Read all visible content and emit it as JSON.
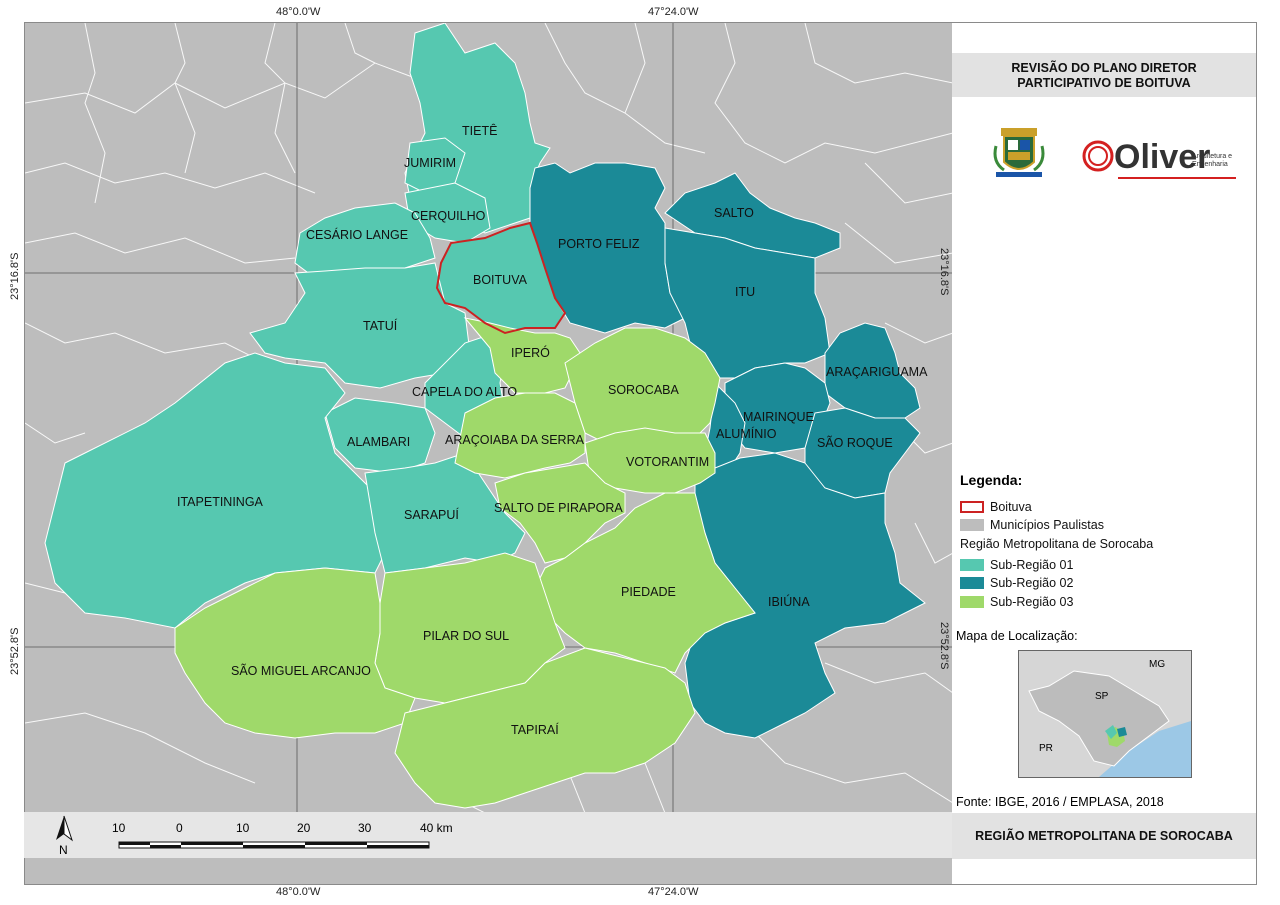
{
  "map": {
    "title": "REVISÃO DO PLANO DIRETOR PARTICIPATIVO DE BOITUVA",
    "subtitle": "REGIÃO METROPOLITANA DE SOROCABA",
    "source": "Fonte: IBGE, 2016 / EMPLASA, 2018",
    "north_label": "N",
    "scale_labels": [
      "10",
      "0",
      "10",
      "20",
      "30",
      "40 km"
    ],
    "coords": {
      "lon_left": "48°0.0'W",
      "lon_right": "47°24.0'W",
      "lat_upper": "23°16.8'S",
      "lat_lower": "23°52.8'S"
    },
    "colors": {
      "sub01": "#56c8b0",
      "sub02": "#1b8a97",
      "sub03": "#9fd96a",
      "background": "#bdbdbd",
      "boituva_outline": "#cc2222"
    },
    "municipalities": [
      {
        "name": "TIETÊ",
        "region": "sub01"
      },
      {
        "name": "JUMIRIM",
        "region": "sub01"
      },
      {
        "name": "CERQUILHO",
        "region": "sub01"
      },
      {
        "name": "CESÁRIO LANGE",
        "region": "sub01"
      },
      {
        "name": "BOITUVA",
        "region": "sub01"
      },
      {
        "name": "TATUÍ",
        "region": "sub01"
      },
      {
        "name": "CAPELA DO ALTO",
        "region": "sub01"
      },
      {
        "name": "ALAMBARI",
        "region": "sub01"
      },
      {
        "name": "ITAPETININGA",
        "region": "sub01"
      },
      {
        "name": "SARAPUÍ",
        "region": "sub01"
      },
      {
        "name": "PORTO FELIZ",
        "region": "sub02"
      },
      {
        "name": "SALTO",
        "region": "sub02"
      },
      {
        "name": "ITU",
        "region": "sub02"
      },
      {
        "name": "ARAÇARIGUAMA",
        "region": "sub02"
      },
      {
        "name": "MAIRINQUE",
        "region": "sub02"
      },
      {
        "name": "ALUMÍNIO",
        "region": "sub02"
      },
      {
        "name": "SÃO ROQUE",
        "region": "sub02"
      },
      {
        "name": "IBIÚNA",
        "region": "sub02"
      },
      {
        "name": "IPERÓ",
        "region": "sub03"
      },
      {
        "name": "SOROCABA",
        "region": "sub03"
      },
      {
        "name": "ARAÇOIABA DA SERRA",
        "region": "sub03"
      },
      {
        "name": "VOTORANTIM",
        "region": "sub03"
      },
      {
        "name": "SALTO DE PIRAPORA",
        "region": "sub03"
      },
      {
        "name": "PIEDADE",
        "region": "sub03"
      },
      {
        "name": "PILAR DO SUL",
        "region": "sub03"
      },
      {
        "name": "SÃO MIGUEL ARCANJO",
        "region": "sub03"
      },
      {
        "name": "TAPIRAÍ",
        "region": "sub03"
      }
    ],
    "legend": {
      "title": "Legenda:",
      "items": [
        {
          "label": "Boituva"
        },
        {
          "label": "Municípios Paulistas"
        },
        {
          "label": "Região Metropolitana de Sorocaba"
        },
        {
          "label": "Sub-Região 01"
        },
        {
          "label": "Sub-Região 02"
        },
        {
          "label": "Sub-Região 03"
        }
      ]
    },
    "location_map": {
      "title": "Mapa de Localização:",
      "labels": [
        "MG",
        "SP",
        "PR"
      ]
    },
    "logo": {
      "brand": "Oliver",
      "tagline_1": "Arquitetura e",
      "tagline_2": "Engenharia"
    }
  }
}
